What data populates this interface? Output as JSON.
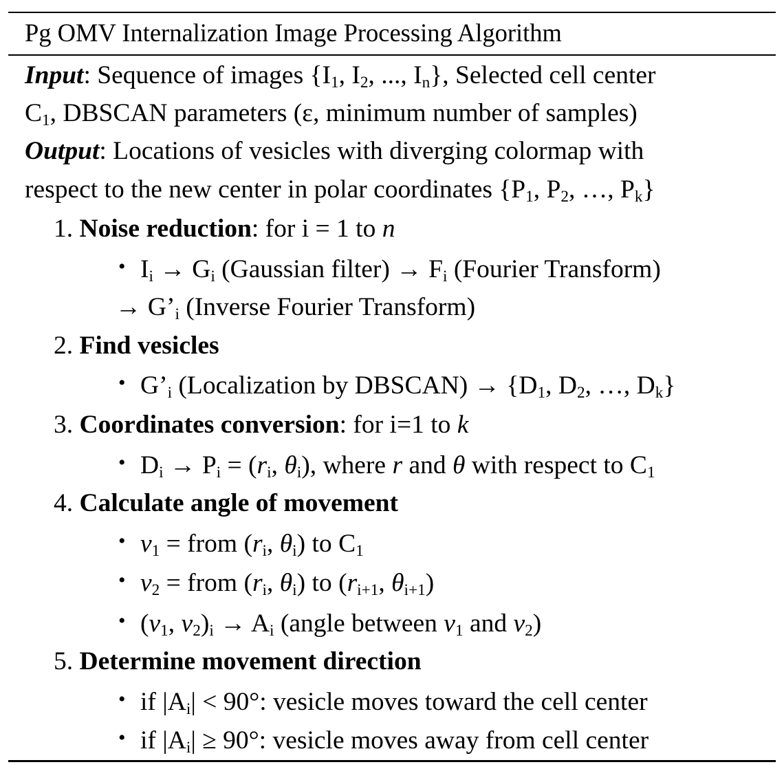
{
  "title": "Pg OMV Internalization Image Processing Algorithm",
  "input": {
    "label": "Input",
    "line1": ": Sequence of images {I",
    "line1_end": "}, Selected cell center",
    "line2_end": ", DBSCAN parameters (ε, minimum number of samples)"
  },
  "output": {
    "label": "Output",
    "line1": ": Locations of vesicles with diverging colormap with",
    "line2": "respect to the new center in polar coordinates {P"
  },
  "steps": [
    {
      "number": "1.",
      "title": "Noise reduction",
      "suffix": ":  for i = 1 to ",
      "var": "n"
    },
    {
      "number": "2.",
      "title": "Find vesicles"
    },
    {
      "number": "3.",
      "title": "Coordinates conversion",
      "suffix": ": for i=1 to ",
      "var": "k"
    },
    {
      "number": "4.",
      "title": "Calculate angle of movement"
    },
    {
      "number": "5.",
      "title": "Determine movement direction"
    }
  ],
  "bullets": {
    "noise_1": " (Gaussian filter) → F",
    "noise_2": " (Fourier Transform)",
    "noise_3": " (Inverse Fourier Transform)",
    "find_1": " (Localization by DBSCAN) → {D",
    "coord_1": "), where ",
    "coord_2": " with respect to C",
    "angle_from": " = from (",
    "angle_to": ") to ",
    "angle_between": " (angle between ",
    "direction_toward": "| < 90°: vesicle moves toward the cell center",
    "direction_away": "| ≥ 90°: vesicle moves away from cell center"
  }
}
